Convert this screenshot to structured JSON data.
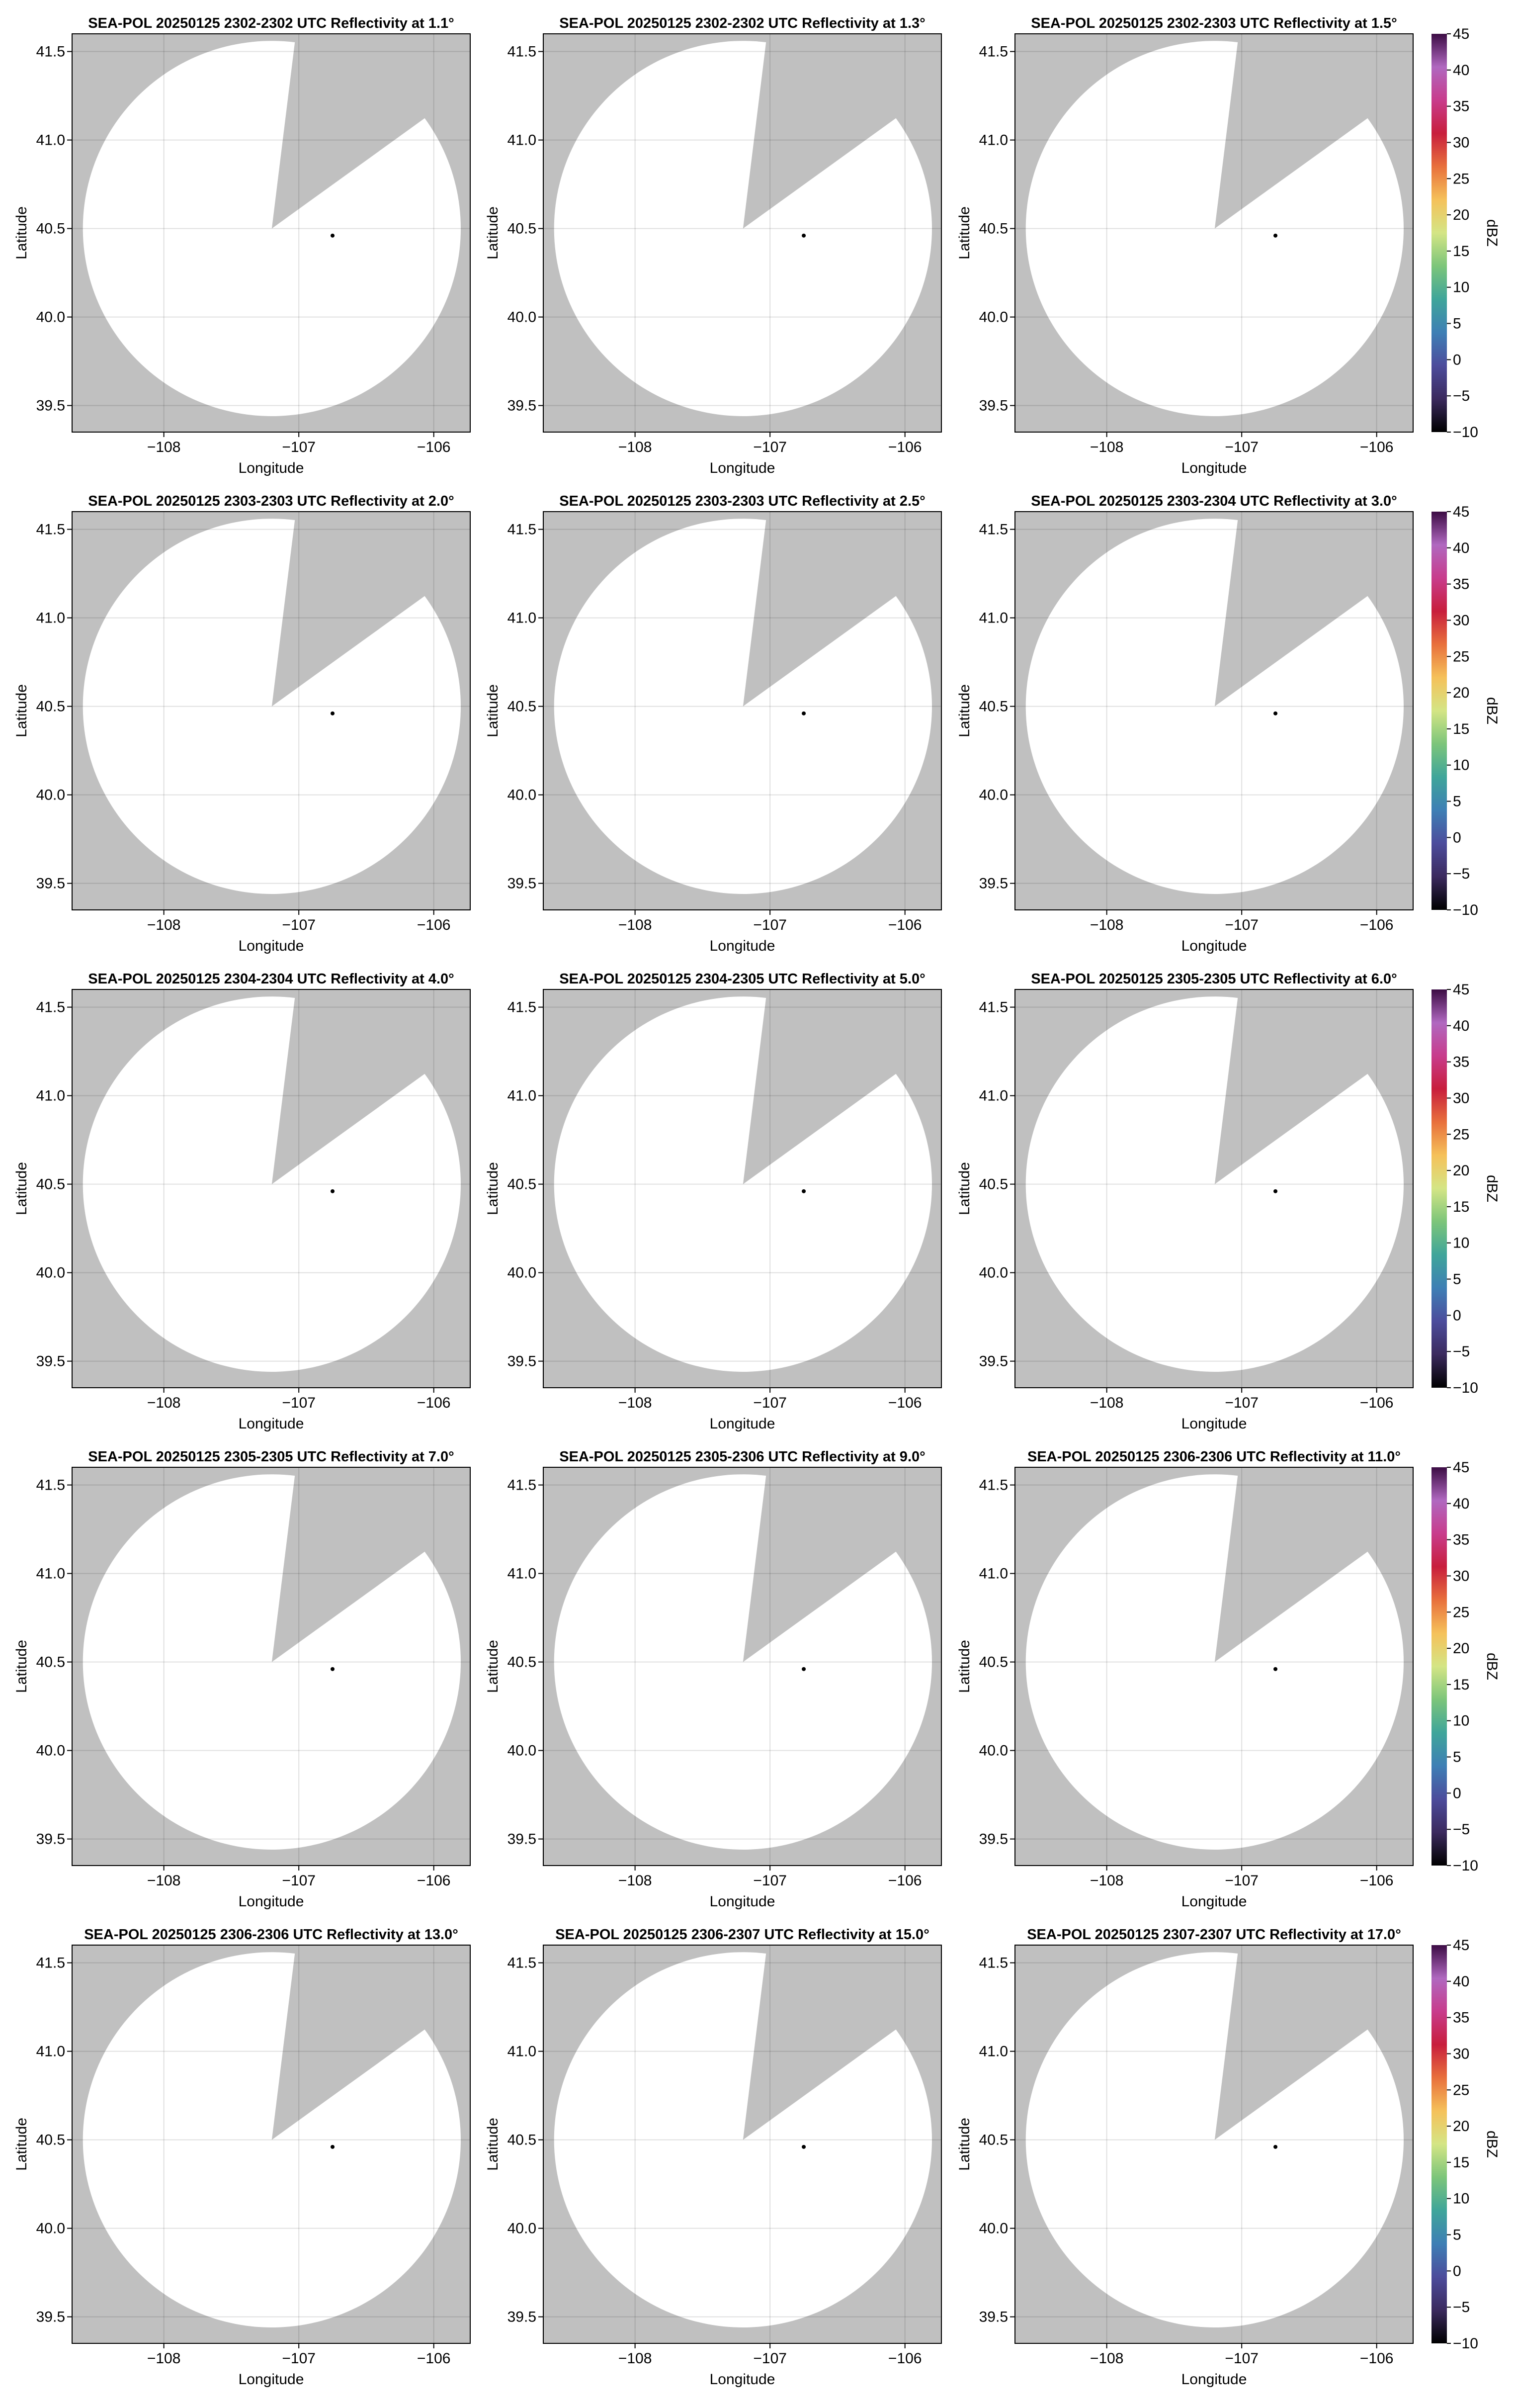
{
  "chart_data": [
    {
      "type": "ppi",
      "title": "SEA-POL 20250125 2302-2302 UTC Reflectivity at 1.1°",
      "xlabel": "Longitude",
      "ylabel": "Latitude",
      "xlim": [
        -108.68,
        -105.73
      ],
      "xticks": [
        {
          "value": -108,
          "label": "−108"
        },
        {
          "value": -107,
          "label": "−107"
        },
        {
          "value": -106,
          "label": "−106"
        }
      ],
      "ylim": [
        39.35,
        41.6
      ],
      "yticks": [
        39.5,
        {
          "value": 40,
          "label": "40.0"
        },
        40.5,
        {
          "value": 41,
          "label": "41.0"
        },
        41.5
      ],
      "grid": true
    },
    {
      "type": "ppi",
      "title": "SEA-POL 20250125 2302-2302 UTC Reflectivity at 1.3°",
      "xlabel": "Longitude",
      "ylabel": "Latitude",
      "xlim": [
        -108.68,
        -105.73
      ],
      "xticks": [
        {
          "value": -108,
          "label": "−108"
        },
        {
          "value": -107,
          "label": "−107"
        },
        {
          "value": -106,
          "label": "−106"
        }
      ],
      "ylim": [
        39.35,
        41.6
      ],
      "yticks": [
        39.5,
        {
          "value": 40,
          "label": "40.0"
        },
        40.5,
        {
          "value": 41,
          "label": "41.0"
        },
        41.5
      ],
      "grid": true
    },
    {
      "type": "ppi",
      "title": "SEA-POL 20250125 2302-2303 UTC Reflectivity at 1.5°",
      "xlabel": "Longitude",
      "ylabel": "Latitude",
      "xlim": [
        -108.68,
        -105.73
      ],
      "xticks": [
        {
          "value": -108,
          "label": "−108"
        },
        {
          "value": -107,
          "label": "−107"
        },
        {
          "value": -106,
          "label": "−106"
        }
      ],
      "ylim": [
        39.35,
        41.6
      ],
      "yticks": [
        39.5,
        {
          "value": 40,
          "label": "40.0"
        },
        40.5,
        {
          "value": 41,
          "label": "41.0"
        },
        41.5
      ],
      "grid": true
    },
    {
      "type": "ppi",
      "title": "SEA-POL 20250125 2303-2303 UTC Reflectivity at 2.0°",
      "xlabel": "Longitude",
      "ylabel": "Latitude",
      "xlim": [
        -108.68,
        -105.73
      ],
      "xticks": [
        {
          "value": -108,
          "label": "−108"
        },
        {
          "value": -107,
          "label": "−107"
        },
        {
          "value": -106,
          "label": "−106"
        }
      ],
      "ylim": [
        39.35,
        41.6
      ],
      "yticks": [
        39.5,
        {
          "value": 40,
          "label": "40.0"
        },
        40.5,
        {
          "value": 41,
          "label": "41.0"
        },
        41.5
      ],
      "grid": true
    },
    {
      "type": "ppi",
      "title": "SEA-POL 20250125 2303-2303 UTC Reflectivity at 2.5°",
      "xlabel": "Longitude",
      "ylabel": "Latitude",
      "xlim": [
        -108.68,
        -105.73
      ],
      "xticks": [
        {
          "value": -108,
          "label": "−108"
        },
        {
          "value": -107,
          "label": "−107"
        },
        {
          "value": -106,
          "label": "−106"
        }
      ],
      "ylim": [
        39.35,
        41.6
      ],
      "yticks": [
        39.5,
        {
          "value": 40,
          "label": "40.0"
        },
        40.5,
        {
          "value": 41,
          "label": "41.0"
        },
        41.5
      ],
      "grid": true
    },
    {
      "type": "ppi",
      "title": "SEA-POL 20250125 2303-2304 UTC Reflectivity at 3.0°",
      "xlabel": "Longitude",
      "ylabel": "Latitude",
      "xlim": [
        -108.68,
        -105.73
      ],
      "xticks": [
        {
          "value": -108,
          "label": "−108"
        },
        {
          "value": -107,
          "label": "−107"
        },
        {
          "value": -106,
          "label": "−106"
        }
      ],
      "ylim": [
        39.35,
        41.6
      ],
      "yticks": [
        39.5,
        {
          "value": 40,
          "label": "40.0"
        },
        40.5,
        {
          "value": 41,
          "label": "41.0"
        },
        41.5
      ],
      "grid": true
    },
    {
      "type": "ppi",
      "title": "SEA-POL 20250125 2304-2304 UTC Reflectivity at 4.0°",
      "xlabel": "Longitude",
      "ylabel": "Latitude",
      "xlim": [
        -108.68,
        -105.73
      ],
      "xticks": [
        {
          "value": -108,
          "label": "−108"
        },
        {
          "value": -107,
          "label": "−107"
        },
        {
          "value": -106,
          "label": "−106"
        }
      ],
      "ylim": [
        39.35,
        41.6
      ],
      "yticks": [
        39.5,
        {
          "value": 40,
          "label": "40.0"
        },
        40.5,
        {
          "value": 41,
          "label": "41.0"
        },
        41.5
      ],
      "grid": true
    },
    {
      "type": "ppi",
      "title": "SEA-POL 20250125 2304-2305 UTC Reflectivity at 5.0°",
      "xlabel": "Longitude",
      "ylabel": "Latitude",
      "xlim": [
        -108.68,
        -105.73
      ],
      "xticks": [
        {
          "value": -108,
          "label": "−108"
        },
        {
          "value": -107,
          "label": "−107"
        },
        {
          "value": -106,
          "label": "−106"
        }
      ],
      "ylim": [
        39.35,
        41.6
      ],
      "yticks": [
        39.5,
        {
          "value": 40,
          "label": "40.0"
        },
        40.5,
        {
          "value": 41,
          "label": "41.0"
        },
        41.5
      ],
      "grid": true
    },
    {
      "type": "ppi",
      "title": "SEA-POL 20250125 2305-2305 UTC Reflectivity at 6.0°",
      "xlabel": "Longitude",
      "ylabel": "Latitude",
      "xlim": [
        -108.68,
        -105.73
      ],
      "xticks": [
        {
          "value": -108,
          "label": "−108"
        },
        {
          "value": -107,
          "label": "−107"
        },
        {
          "value": -106,
          "label": "−106"
        }
      ],
      "ylim": [
        39.35,
        41.6
      ],
      "yticks": [
        39.5,
        {
          "value": 40,
          "label": "40.0"
        },
        40.5,
        {
          "value": 41,
          "label": "41.0"
        },
        41.5
      ],
      "grid": true
    },
    {
      "type": "ppi",
      "title": "SEA-POL 20250125 2305-2305 UTC Reflectivity at 7.0°",
      "xlabel": "Longitude",
      "ylabel": "Latitude",
      "xlim": [
        -108.68,
        -105.73
      ],
      "xticks": [
        {
          "value": -108,
          "label": "−108"
        },
        {
          "value": -107,
          "label": "−107"
        },
        {
          "value": -106,
          "label": "−106"
        }
      ],
      "ylim": [
        39.35,
        41.6
      ],
      "yticks": [
        39.5,
        {
          "value": 40,
          "label": "40.0"
        },
        40.5,
        {
          "value": 41,
          "label": "41.0"
        },
        41.5
      ],
      "grid": true
    },
    {
      "type": "ppi",
      "title": "SEA-POL 20250125 2305-2306 UTC Reflectivity at 9.0°",
      "xlabel": "Longitude",
      "ylabel": "Latitude",
      "xlim": [
        -108.68,
        -105.73
      ],
      "xticks": [
        {
          "value": -108,
          "label": "−108"
        },
        {
          "value": -107,
          "label": "−107"
        },
        {
          "value": -106,
          "label": "−106"
        }
      ],
      "ylim": [
        39.35,
        41.6
      ],
      "yticks": [
        39.5,
        {
          "value": 40,
          "label": "40.0"
        },
        40.5,
        {
          "value": 41,
          "label": "41.0"
        },
        41.5
      ],
      "grid": true
    },
    {
      "type": "ppi",
      "title": "SEA-POL 20250125 2306-2306 UTC Reflectivity at 11.0°",
      "xlabel": "Longitude",
      "ylabel": "Latitude",
      "xlim": [
        -108.68,
        -105.73
      ],
      "xticks": [
        {
          "value": -108,
          "label": "−108"
        },
        {
          "value": -107,
          "label": "−107"
        },
        {
          "value": -106,
          "label": "−106"
        }
      ],
      "ylim": [
        39.35,
        41.6
      ],
      "yticks": [
        39.5,
        {
          "value": 40,
          "label": "40.0"
        },
        40.5,
        {
          "value": 41,
          "label": "41.0"
        },
        41.5
      ],
      "grid": true
    },
    {
      "type": "ppi",
      "title": "SEA-POL 20250125 2306-2306 UTC Reflectivity at 13.0°",
      "xlabel": "Longitude",
      "ylabel": "Latitude",
      "xlim": [
        -108.68,
        -105.73
      ],
      "xticks": [
        {
          "value": -108,
          "label": "−108"
        },
        {
          "value": -107,
          "label": "−107"
        },
        {
          "value": -106,
          "label": "−106"
        }
      ],
      "ylim": [
        39.35,
        41.6
      ],
      "yticks": [
        39.5,
        {
          "value": 40,
          "label": "40.0"
        },
        40.5,
        {
          "value": 41,
          "label": "41.0"
        },
        41.5
      ],
      "grid": true
    },
    {
      "type": "ppi",
      "title": "SEA-POL 20250125 2306-2307 UTC Reflectivity at 15.0°",
      "xlabel": "Longitude",
      "ylabel": "Latitude",
      "xlim": [
        -108.68,
        -105.73
      ],
      "xticks": [
        {
          "value": -108,
          "label": "−108"
        },
        {
          "value": -107,
          "label": "−107"
        },
        {
          "value": -106,
          "label": "−106"
        }
      ],
      "ylim": [
        39.35,
        41.6
      ],
      "yticks": [
        39.5,
        {
          "value": 40,
          "label": "40.0"
        },
        40.5,
        {
          "value": 41,
          "label": "41.0"
        },
        41.5
      ],
      "grid": true
    },
    {
      "type": "ppi",
      "title": "SEA-POL 20250125 2307-2307 UTC Reflectivity at 17.0°",
      "xlabel": "Longitude",
      "ylabel": "Latitude",
      "xlim": [
        -108.68,
        -105.73
      ],
      "xticks": [
        {
          "value": -108,
          "label": "−108"
        },
        {
          "value": -107,
          "label": "−107"
        },
        {
          "value": -106,
          "label": "−106"
        }
      ],
      "ylim": [
        39.35,
        41.6
      ],
      "yticks": [
        39.5,
        {
          "value": 40,
          "label": "40.0"
        },
        40.5,
        {
          "value": 41,
          "label": "41.0"
        },
        41.5
      ],
      "grid": true
    }
  ],
  "colorbar": {
    "label": "dBZ",
    "lim": [
      -10,
      45
    ],
    "ticks": [
      {
        "value": -10,
        "label": "−10"
      },
      {
        "value": -5,
        "label": "−5"
      },
      0,
      5,
      10,
      15,
      20,
      25,
      30,
      35,
      40,
      45
    ],
    "colors": [
      "#000000",
      "#3b2a5e",
      "#4c4c9c",
      "#3e7fb5",
      "#3fa59a",
      "#7cc57a",
      "#d4e585",
      "#f5c15a",
      "#e8703c",
      "#c81e3c",
      "#c83c8c",
      "#b068c0",
      "#3c0c44"
    ]
  }
}
